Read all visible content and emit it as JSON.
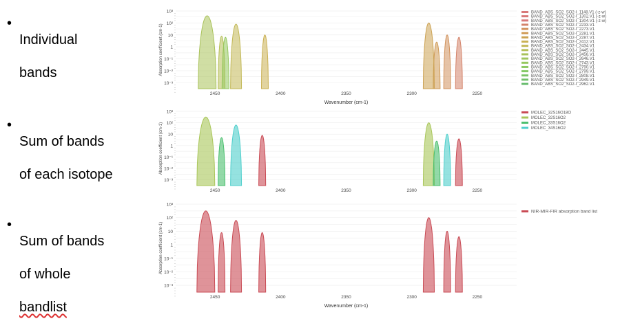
{
  "bullets": [
    {
      "line1": "Individual",
      "line2": "bands",
      "line3": ""
    },
    {
      "line1": "Sum of bands",
      "line2": "of each isotope",
      "line3": ""
    },
    {
      "line1": "Sum of bands",
      "line2": "of whole",
      "line3": "bandlist"
    }
  ],
  "axis": {
    "xlabel": "Wavenumber (cm-1)",
    "ylabel": "Absorption coefficient (cm-1)",
    "xticks": [
      "2450",
      "2400",
      "2350",
      "2300",
      "2250"
    ],
    "yticks": [
      "10³",
      "10²",
      "10",
      "1",
      "10⁻¹",
      "10⁻²",
      "10⁻³"
    ]
  },
  "chart_data": [
    {
      "type": "area",
      "title": "",
      "xlabel": "Wavenumber (cm-1)",
      "ylabel": "Absorption coefficient (cm-1)",
      "xlim": [
        2480,
        2220
      ],
      "ylim": [
        -3.5,
        3
      ],
      "log_y": true,
      "legend_position": "right",
      "series": [
        {
          "name": "BAND_ABS_SO2_SO2-I_1148.V1 (-z-w)",
          "color": "#d87a7a",
          "peak_x": null,
          "peak_log": null
        },
        {
          "name": "BAND_ABS_SO2_SO2-I_1302.V1 (-z-w)",
          "color": "#d87a7a",
          "peak_x": null,
          "peak_log": null
        },
        {
          "name": "BAND_ABS_SO2_SO2-I_1304.V1 (-z-w)",
          "color": "#d87a7a",
          "peak_x": null,
          "peak_log": null
        },
        {
          "name": "BAND_ABS_SO2_SO2-I_2233.V1",
          "color": "#d4836a",
          "peak_x": 2264,
          "peak_log": 0.8
        },
        {
          "name": "BAND_ABS_SO2_SO2-I_2273.V1",
          "color": "#d1925c",
          "peak_x": 2273,
          "peak_log": 1.0
        },
        {
          "name": "BAND_ABS_SO2_SO2-I_2281.V1",
          "color": "#cf9a55",
          "peak_x": 2281,
          "peak_log": 0.4
        },
        {
          "name": "BAND_ABS_SO2_SO2-I_2287.V1",
          "color": "#cca252",
          "peak_x": 2287,
          "peak_log": 2.0
        },
        {
          "name": "BAND_ABS_SO2_SO2-I_2412.V1",
          "color": "#cab052",
          "peak_x": 2412,
          "peak_log": 1.0
        },
        {
          "name": "BAND_ABS_SO2_SO2-I_2434.V1",
          "color": "#c2b856",
          "peak_x": 2434,
          "peak_log": 1.9
        },
        {
          "name": "BAND_ABS_SO2_SO2-I_2445.V1",
          "color": "#b6bf58",
          "peak_x": 2445,
          "peak_log": 0.9
        },
        {
          "name": "BAND_ABS_SO2_SO2-I_2456.V1",
          "color": "#a9c25a",
          "peak_x": 2456,
          "peak_log": 2.6
        },
        {
          "name": "BAND_ABS_SO2_SO2-I_2646.V1",
          "color": "#9fc55d",
          "peak_x": null,
          "peak_log": null
        },
        {
          "name": "BAND_ABS_SO2_SO2-I_2743.V1",
          "color": "#95c85f",
          "peak_x": 2442,
          "peak_log": 0.8
        },
        {
          "name": "BAND_ABS_SO2_SO2-I_2790.V1",
          "color": "#8dca63",
          "peak_x": null,
          "peak_log": null
        },
        {
          "name": "BAND_ABS_SO2_SO2-I_2799.V1",
          "color": "#85c966",
          "peak_x": null,
          "peak_log": null
        },
        {
          "name": "BAND_ABS_SO2_SO2-I_2808.V1",
          "color": "#7cc468",
          "peak_x": null,
          "peak_log": null
        },
        {
          "name": "BAND_ABS_SO2_SO2-I_2949.V1",
          "color": "#72c06b",
          "peak_x": null,
          "peak_log": null
        },
        {
          "name": "BAND_ABS_SO2_SO2-I_2962.V1",
          "color": "#68bc6e",
          "peak_x": null,
          "peak_log": null
        }
      ]
    },
    {
      "type": "area",
      "title": "",
      "xlabel": "",
      "ylabel": "Absorption coefficient (cm-1)",
      "xlim": [
        2480,
        2220
      ],
      "ylim": [
        -3.5,
        3
      ],
      "log_y": true,
      "legend_position": "right",
      "series": [
        {
          "name": "MOLEC_32S16O18O",
          "color": "#c94b55",
          "peaks": [
            [
              2414,
              0.9
            ],
            [
              2264,
              0.6
            ]
          ]
        },
        {
          "name": "MOLEC_32S16O2",
          "color": "#a9c659",
          "peaks": [
            [
              2457,
              2.5
            ],
            [
              2287,
              2.0
            ]
          ]
        },
        {
          "name": "MOLEC_33S16O2",
          "color": "#4bbf6e",
          "peaks": [
            [
              2445,
              0.7
            ],
            [
              2281,
              0.4
            ]
          ]
        },
        {
          "name": "MOLEC_34S16O2",
          "color": "#4fcfcc",
          "peaks": [
            [
              2434,
              1.8
            ],
            [
              2273,
              1.0
            ]
          ]
        }
      ]
    },
    {
      "type": "area",
      "title": "",
      "xlabel": "Wavenumber (cm-1)",
      "ylabel": "Absorption coefficient (cm-1)",
      "xlim": [
        2480,
        2220
      ],
      "ylim": [
        -3.5,
        3
      ],
      "log_y": true,
      "legend_position": "top-right",
      "series": [
        {
          "name": "NIR-MIR-FIR absorption band list",
          "color": "#c94b55",
          "peaks": [
            [
              2457,
              2.5
            ],
            [
              2445,
              0.9
            ],
            [
              2434,
              1.8
            ],
            [
              2414,
              0.9
            ],
            [
              2287,
              2.0
            ],
            [
              2273,
              1.0
            ],
            [
              2264,
              0.6
            ]
          ]
        }
      ]
    }
  ]
}
